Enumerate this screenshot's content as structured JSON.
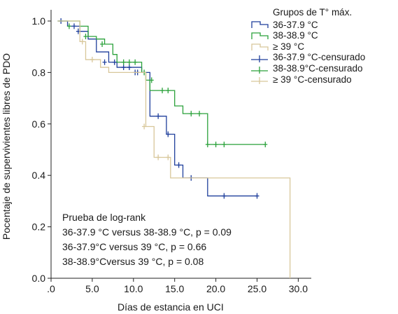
{
  "chart_data": {
    "type": "line",
    "xlabel": "Días de estancia en UCI",
    "ylabel": "Pocentaje de supervivientes libres de PDO",
    "xlim": [
      0,
      32
    ],
    "ylim": [
      0,
      1.05
    ],
    "xticks": [
      0,
      5,
      10,
      15,
      20,
      25,
      30
    ],
    "xtick_labels": [
      ".0",
      "5.0",
      "10.0",
      "15.0",
      "20.0",
      "25.0",
      "30.0"
    ],
    "yticks": [
      0,
      0.2,
      0.4,
      0.6,
      0.8,
      1.0
    ],
    "ytick_labels": [
      "0.0",
      "0.2",
      "0.4",
      "0.6",
      "0.8",
      "1.0"
    ],
    "legend_title": "Grupos de T° máx.",
    "legend": [
      {
        "label": "36-37.9 °C",
        "kind": "step",
        "color": "#1f3f9c"
      },
      {
        "label": "38-38.9 °C",
        "kind": "step",
        "color": "#2aa13a"
      },
      {
        "label": "≥ 39 °C",
        "kind": "step",
        "color": "#d8c79a"
      },
      {
        "label": "36-37.9 °C-censurado",
        "kind": "censor",
        "color": "#1f3f9c"
      },
      {
        "label": "38-38.9°C-censurado",
        "kind": "censor",
        "color": "#2aa13a"
      },
      {
        "label": "≥ 39 °C-censurado",
        "kind": "censor",
        "color": "#d8c79a"
      }
    ],
    "series": [
      {
        "color": "#1f3f9c",
        "steps": [
          [
            0.8,
            1.0
          ],
          [
            2.0,
            0.98
          ],
          [
            3.5,
            0.96
          ],
          [
            4.5,
            0.93
          ],
          [
            5.5,
            0.88
          ],
          [
            7.0,
            0.84
          ],
          [
            8.0,
            0.82
          ],
          [
            11.0,
            0.8
          ],
          [
            12.0,
            0.63
          ],
          [
            14.0,
            0.56
          ],
          [
            15.0,
            0.44
          ],
          [
            16.0,
            0.39
          ],
          [
            19.0,
            0.32
          ],
          [
            25.0,
            0.32
          ]
        ],
        "censored": [
          [
            1.2,
            1.0
          ],
          [
            2.8,
            0.98
          ],
          [
            3.3,
            0.96
          ],
          [
            6.5,
            0.84
          ],
          [
            7.7,
            0.84
          ],
          [
            8.8,
            0.82
          ],
          [
            9.5,
            0.82
          ],
          [
            10.2,
            0.8
          ],
          [
            10.5,
            0.8
          ],
          [
            13.0,
            0.63
          ],
          [
            14.2,
            0.56
          ],
          [
            15.5,
            0.44
          ],
          [
            17.0,
            0.39
          ],
          [
            21.0,
            0.32
          ],
          [
            25.0,
            0.32
          ]
        ]
      },
      {
        "color": "#2aa13a",
        "steps": [
          [
            0.8,
            1.0
          ],
          [
            3.5,
            0.98
          ],
          [
            4.5,
            0.94
          ],
          [
            5.5,
            0.93
          ],
          [
            6.5,
            0.91
          ],
          [
            7.5,
            0.87
          ],
          [
            8.0,
            0.84
          ],
          [
            11.0,
            0.8
          ],
          [
            11.5,
            0.77
          ],
          [
            12.0,
            0.73
          ],
          [
            15.0,
            0.67
          ],
          [
            16.0,
            0.64
          ],
          [
            19.0,
            0.52
          ],
          [
            26.0,
            0.52
          ]
        ],
        "censored": [
          [
            2.2,
            0.98
          ],
          [
            4.2,
            0.94
          ],
          [
            6.2,
            0.91
          ],
          [
            8.8,
            0.84
          ],
          [
            9.5,
            0.84
          ],
          [
            10.2,
            0.84
          ],
          [
            11.3,
            0.8
          ],
          [
            12.2,
            0.77
          ],
          [
            13.5,
            0.73
          ],
          [
            14.2,
            0.73
          ],
          [
            17.0,
            0.64
          ],
          [
            18.0,
            0.64
          ],
          [
            19.0,
            0.52
          ],
          [
            20.0,
            0.52
          ],
          [
            21.0,
            0.52
          ],
          [
            26.0,
            0.52
          ]
        ]
      },
      {
        "color": "#d8c79a",
        "steps": [
          [
            0.8,
            1.0
          ],
          [
            3.5,
            0.92
          ],
          [
            4.2,
            0.85
          ],
          [
            6.0,
            0.82
          ],
          [
            7.0,
            0.8
          ],
          [
            11.5,
            0.59
          ],
          [
            12.5,
            0.47
          ],
          [
            14.5,
            0.39
          ],
          [
            29.0,
            0.39
          ],
          [
            29.0,
            0.0
          ]
        ],
        "censored": [
          [
            3.8,
            0.92
          ],
          [
            5.0,
            0.85
          ],
          [
            11.3,
            0.59
          ],
          [
            13.0,
            0.47
          ],
          [
            14.2,
            0.47
          ]
        ]
      }
    ],
    "annotation": [
      "Prueba de log-rank",
      "36-37.9 °C versus 38-38.9 °C, p = 0.09",
      "36-37.9°C versus  39 °C, p = 0.66",
      "38-38.9°Cversus  39 °C, p = 0.08"
    ]
  }
}
